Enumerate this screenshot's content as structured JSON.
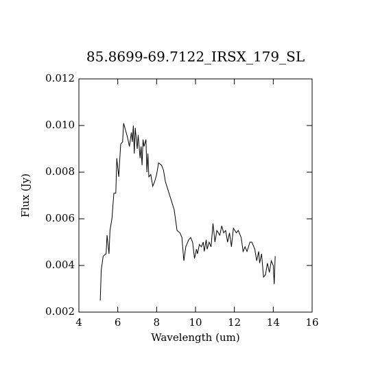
{
  "chart_data": {
    "type": "line",
    "title": "85.8699-69.7122_IRSX_179_SL",
    "xlabel": "Wavelength (um)",
    "ylabel": "Flux (Jy)",
    "xlim": [
      4,
      16
    ],
    "xticks": [
      4,
      6,
      8,
      10,
      12,
      14,
      16
    ],
    "ylim": [
      0.002,
      0.012
    ],
    "yticks": [
      0.002,
      0.004,
      0.006,
      0.008,
      {
        "value": 0.01,
        "label": "0.010"
      },
      0.012
    ],
    "color": "#000000",
    "x": [
      5.1,
      5.15,
      5.25,
      5.4,
      5.45,
      5.55,
      5.6,
      5.7,
      5.8,
      5.9,
      5.95,
      6.05,
      6.15,
      6.25,
      6.3,
      6.4,
      6.5,
      6.6,
      6.7,
      6.75,
      6.8,
      6.85,
      6.9,
      7.0,
      7.05,
      7.15,
      7.2,
      7.25,
      7.3,
      7.35,
      7.45,
      7.5,
      7.55,
      7.6,
      7.7,
      7.8,
      7.9,
      8.0,
      8.1,
      8.25,
      8.35,
      8.45,
      8.6,
      8.75,
      8.9,
      9.05,
      9.2,
      9.3,
      9.4,
      9.5,
      9.65,
      9.75,
      9.85,
      9.95,
      10.05,
      10.1,
      10.2,
      10.3,
      10.4,
      10.45,
      10.55,
      10.6,
      10.7,
      10.8,
      10.9,
      11.0,
      11.1,
      11.25,
      11.35,
      11.45,
      11.55,
      11.65,
      11.75,
      11.85,
      11.95,
      12.1,
      12.2,
      12.35,
      12.45,
      12.55,
      12.65,
      12.8,
      12.9,
      13.05,
      13.15,
      13.25,
      13.3,
      13.4,
      13.5,
      13.6,
      13.7,
      13.8,
      13.9,
      14.0,
      14.05,
      14.1
    ],
    "values": [
      0.0025,
      0.0038,
      0.0044,
      0.0045,
      0.0053,
      0.0045,
      0.0055,
      0.006,
      0.0071,
      0.0071,
      0.0086,
      0.0078,
      0.0092,
      0.0093,
      0.0101,
      0.0098,
      0.0095,
      0.0091,
      0.0097,
      0.0093,
      0.01,
      0.0088,
      0.0099,
      0.009,
      0.0096,
      0.0086,
      0.0091,
      0.0083,
      0.0094,
      0.0091,
      0.0094,
      0.008,
      0.0088,
      0.0078,
      0.0079,
      0.0074,
      0.0076,
      0.0079,
      0.0084,
      0.0083,
      0.0081,
      0.0076,
      0.0072,
      0.0068,
      0.0064,
      0.0055,
      0.0054,
      0.0052,
      0.0042,
      0.0048,
      0.0051,
      0.0052,
      0.005,
      0.0043,
      0.0047,
      0.0045,
      0.0049,
      0.0048,
      0.005,
      0.0046,
      0.0051,
      0.0047,
      0.005,
      0.0048,
      0.0058,
      0.005,
      0.0055,
      0.0053,
      0.0057,
      0.0054,
      0.0055,
      0.005,
      0.0054,
      0.0048,
      0.0056,
      0.0054,
      0.0055,
      0.0052,
      0.0046,
      0.0048,
      0.0046,
      0.005,
      0.005,
      0.0047,
      0.0042,
      0.0046,
      0.0041,
      0.0045,
      0.0035,
      0.0036,
      0.0041,
      0.0037,
      0.0042,
      0.004,
      0.0032,
      0.0044
    ]
  }
}
